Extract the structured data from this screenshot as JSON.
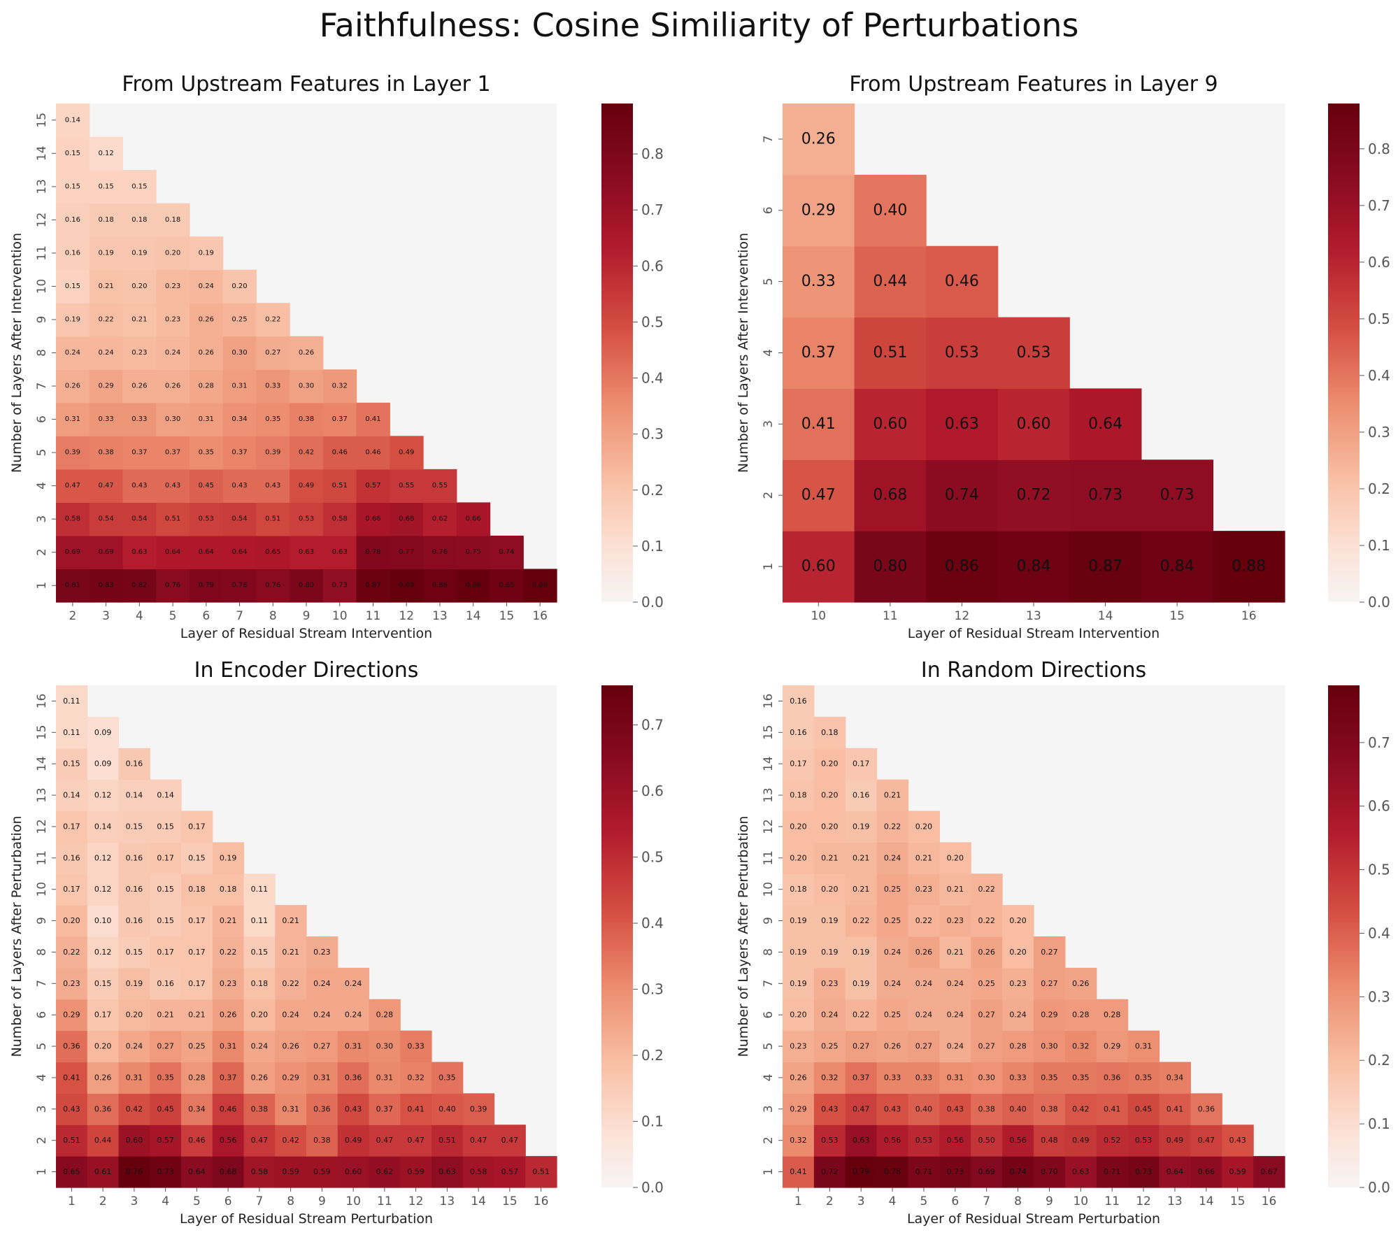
{
  "suptitle": "Faithfulness: Cosine Similiarity of Perturbations",
  "chart_data": [
    {
      "type": "heatmap",
      "title": "From Upstream Features in Layer 1",
      "xlabel": "Layer of Residual Stream Intervention",
      "ylabel": "Number of Layers After Intervention",
      "x_ticks": [
        2,
        3,
        4,
        5,
        6,
        7,
        8,
        9,
        10,
        11,
        12,
        13,
        14,
        15,
        16
      ],
      "y_ticks": [
        1,
        2,
        3,
        4,
        5,
        6,
        7,
        8,
        9,
        10,
        11,
        12,
        13,
        14,
        15
      ],
      "colorbar": {
        "min": 0.0,
        "max": 0.89,
        "ticks": [
          "0.0",
          "0.1",
          "0.2",
          "0.3",
          "0.4",
          "0.5",
          "0.6",
          "0.7",
          "0.8"
        ]
      },
      "rows": [
        {
          "y": 1,
          "values": [
            "0.81",
            "0.83",
            "0.82",
            "0.76",
            "0.79",
            "0.78",
            "0.76",
            "0.80",
            "0.73",
            "0.87",
            "0.89",
            "0.86",
            "0.89",
            "0.85",
            "0.89"
          ]
        },
        {
          "y": 2,
          "values": [
            "0.69",
            "0.69",
            "0.63",
            "0.64",
            "0.64",
            "0.64",
            "0.65",
            "0.63",
            "0.63",
            "0.78",
            "0.77",
            "0.76",
            "0.75",
            "0.74"
          ]
        },
        {
          "y": 3,
          "values": [
            "0.58",
            "0.54",
            "0.54",
            "0.51",
            "0.53",
            "0.54",
            "0.51",
            "0.53",
            "0.58",
            "0.66",
            "0.68",
            "0.62",
            "0.66"
          ]
        },
        {
          "y": 4,
          "values": [
            "0.47",
            "0.47",
            "0.43",
            "0.43",
            "0.45",
            "0.43",
            "0.43",
            "0.49",
            "0.51",
            "0.57",
            "0.55",
            "0.55"
          ]
        },
        {
          "y": 5,
          "values": [
            "0.39",
            "0.38",
            "0.37",
            "0.37",
            "0.35",
            "0.37",
            "0.39",
            "0.42",
            "0.46",
            "0.46",
            "0.49"
          ]
        },
        {
          "y": 6,
          "values": [
            "0.31",
            "0.33",
            "0.33",
            "0.30",
            "0.31",
            "0.34",
            "0.35",
            "0.38",
            "0.37",
            "0.41"
          ]
        },
        {
          "y": 7,
          "values": [
            "0.26",
            "0.29",
            "0.26",
            "0.26",
            "0.28",
            "0.31",
            "0.33",
            "0.30",
            "0.32"
          ]
        },
        {
          "y": 8,
          "values": [
            "0.24",
            "0.24",
            "0.23",
            "0.24",
            "0.26",
            "0.30",
            "0.27",
            "0.26"
          ]
        },
        {
          "y": 9,
          "values": [
            "0.19",
            "0.22",
            "0.21",
            "0.23",
            "0.26",
            "0.25",
            "0.22"
          ]
        },
        {
          "y": 10,
          "values": [
            "0.15",
            "0.21",
            "0.20",
            "0.23",
            "0.24",
            "0.20"
          ]
        },
        {
          "y": 11,
          "values": [
            "0.16",
            "0.19",
            "0.19",
            "0.20",
            "0.19"
          ]
        },
        {
          "y": 12,
          "values": [
            "0.16",
            "0.18",
            "0.18",
            "0.18"
          ]
        },
        {
          "y": 13,
          "values": [
            "0.15",
            "0.15",
            "0.15"
          ]
        },
        {
          "y": 14,
          "values": [
            "0.15",
            "0.12"
          ]
        },
        {
          "y": 15,
          "values": [
            "0.14"
          ]
        }
      ]
    },
    {
      "type": "heatmap",
      "title": "From Upstream Features in Layer 9",
      "xlabel": "Layer of Residual Stream Intervention",
      "ylabel": "Number of Layers After Intervention",
      "x_ticks": [
        10,
        11,
        12,
        13,
        14,
        15,
        16
      ],
      "y_ticks": [
        1,
        2,
        3,
        4,
        5,
        6,
        7
      ],
      "colorbar": {
        "min": 0.0,
        "max": 0.88,
        "ticks": [
          "0.0",
          "0.1",
          "0.2",
          "0.3",
          "0.4",
          "0.5",
          "0.6",
          "0.7",
          "0.8"
        ]
      },
      "rows": [
        {
          "y": 1,
          "values": [
            "0.60",
            "0.80",
            "0.86",
            "0.84",
            "0.87",
            "0.84",
            "0.88"
          ]
        },
        {
          "y": 2,
          "values": [
            "0.47",
            "0.68",
            "0.74",
            "0.72",
            "0.73",
            "0.73"
          ]
        },
        {
          "y": 3,
          "values": [
            "0.41",
            "0.60",
            "0.63",
            "0.60",
            "0.64"
          ]
        },
        {
          "y": 4,
          "values": [
            "0.37",
            "0.51",
            "0.53",
            "0.53"
          ]
        },
        {
          "y": 5,
          "values": [
            "0.33",
            "0.44",
            "0.46"
          ]
        },
        {
          "y": 6,
          "values": [
            "0.29",
            "0.40"
          ]
        },
        {
          "y": 7,
          "values": [
            "0.26"
          ]
        }
      ]
    },
    {
      "type": "heatmap",
      "title": "In Encoder Directions",
      "xlabel": "Layer of Residual Stream Perturbation",
      "ylabel": "Number of Layers After Perturbation",
      "x_ticks": [
        1,
        2,
        3,
        4,
        5,
        6,
        7,
        8,
        9,
        10,
        11,
        12,
        13,
        14,
        15,
        16
      ],
      "y_ticks": [
        1,
        2,
        3,
        4,
        5,
        6,
        7,
        8,
        9,
        10,
        11,
        12,
        13,
        14,
        15,
        16
      ],
      "colorbar": {
        "min": 0.0,
        "max": 0.76,
        "ticks": [
          "0.0",
          "0.1",
          "0.2",
          "0.3",
          "0.4",
          "0.5",
          "0.6",
          "0.7"
        ]
      },
      "rows": [
        {
          "y": 1,
          "values": [
            "0.65",
            "0.61",
            "0.76",
            "0.73",
            "0.64",
            "0.68",
            "0.58",
            "0.59",
            "0.59",
            "0.60",
            "0.62",
            "0.59",
            "0.63",
            "0.58",
            "0.57",
            "0.51"
          ]
        },
        {
          "y": 2,
          "values": [
            "0.51",
            "0.44",
            "0.60",
            "0.57",
            "0.46",
            "0.56",
            "0.47",
            "0.42",
            "0.38",
            "0.49",
            "0.47",
            "0.47",
            "0.51",
            "0.47",
            "0.47"
          ]
        },
        {
          "y": 3,
          "values": [
            "0.43",
            "0.36",
            "0.42",
            "0.45",
            "0.34",
            "0.46",
            "0.38",
            "0.31",
            "0.36",
            "0.43",
            "0.37",
            "0.41",
            "0.40",
            "0.39"
          ]
        },
        {
          "y": 4,
          "values": [
            "0.41",
            "0.26",
            "0.31",
            "0.35",
            "0.28",
            "0.37",
            "0.26",
            "0.29",
            "0.31",
            "0.36",
            "0.31",
            "0.32",
            "0.35"
          ]
        },
        {
          "y": 5,
          "values": [
            "0.36",
            "0.20",
            "0.24",
            "0.27",
            "0.25",
            "0.31",
            "0.24",
            "0.26",
            "0.27",
            "0.31",
            "0.30",
            "0.33"
          ]
        },
        {
          "y": 6,
          "values": [
            "0.29",
            "0.17",
            "0.20",
            "0.21",
            "0.21",
            "0.26",
            "0.20",
            "0.24",
            "0.24",
            "0.24",
            "0.28"
          ]
        },
        {
          "y": 7,
          "values": [
            "0.23",
            "0.15",
            "0.19",
            "0.16",
            "0.17",
            "0.23",
            "0.18",
            "0.22",
            "0.24",
            "0.24"
          ]
        },
        {
          "y": 8,
          "values": [
            "0.22",
            "0.12",
            "0.15",
            "0.17",
            "0.17",
            "0.22",
            "0.15",
            "0.21",
            "0.23"
          ]
        },
        {
          "y": 9,
          "values": [
            "0.20",
            "0.10",
            "0.16",
            "0.15",
            "0.17",
            "0.21",
            "0.11",
            "0.21"
          ]
        },
        {
          "y": 10,
          "values": [
            "0.17",
            "0.12",
            "0.16",
            "0.15",
            "0.18",
            "0.18",
            "0.11"
          ]
        },
        {
          "y": 11,
          "values": [
            "0.16",
            "0.12",
            "0.16",
            "0.17",
            "0.15",
            "0.19"
          ]
        },
        {
          "y": 12,
          "values": [
            "0.17",
            "0.14",
            "0.15",
            "0.15",
            "0.17"
          ]
        },
        {
          "y": 13,
          "values": [
            "0.14",
            "0.12",
            "0.14",
            "0.14"
          ]
        },
        {
          "y": 14,
          "values": [
            "0.15",
            "0.09",
            "0.16"
          ]
        },
        {
          "y": 15,
          "values": [
            "0.11",
            "0.09"
          ]
        },
        {
          "y": 16,
          "values": [
            "0.11"
          ]
        }
      ]
    },
    {
      "type": "heatmap",
      "title": "In Random Directions",
      "xlabel": "Layer of Residual Stream Perturbation",
      "ylabel": "Number of Layers After Perturbation",
      "x_ticks": [
        1,
        2,
        3,
        4,
        5,
        6,
        7,
        8,
        9,
        10,
        11,
        12,
        13,
        14,
        15,
        16
      ],
      "y_ticks": [
        1,
        2,
        3,
        4,
        5,
        6,
        7,
        8,
        9,
        10,
        11,
        12,
        13,
        14,
        15,
        16
      ],
      "colorbar": {
        "min": 0.0,
        "max": 0.79,
        "ticks": [
          "0.0",
          "0.1",
          "0.2",
          "0.3",
          "0.4",
          "0.5",
          "0.6",
          "0.7"
        ]
      },
      "rows": [
        {
          "y": 1,
          "values": [
            "0.41",
            "0.72",
            "0.79",
            "0.78",
            "0.71",
            "0.73",
            "0.69",
            "0.74",
            "0.70",
            "0.63",
            "0.71",
            "0.73",
            "0.64",
            "0.66",
            "0.59",
            "0.67"
          ]
        },
        {
          "y": 2,
          "values": [
            "0.32",
            "0.53",
            "0.63",
            "0.56",
            "0.53",
            "0.56",
            "0.50",
            "0.56",
            "0.48",
            "0.49",
            "0.52",
            "0.53",
            "0.49",
            "0.47",
            "0.43"
          ]
        },
        {
          "y": 3,
          "values": [
            "0.29",
            "0.43",
            "0.47",
            "0.43",
            "0.40",
            "0.43",
            "0.38",
            "0.40",
            "0.38",
            "0.42",
            "0.41",
            "0.45",
            "0.41",
            "0.36"
          ]
        },
        {
          "y": 4,
          "values": [
            "0.26",
            "0.32",
            "0.37",
            "0.33",
            "0.33",
            "0.31",
            "0.30",
            "0.33",
            "0.35",
            "0.35",
            "0.36",
            "0.35",
            "0.34"
          ]
        },
        {
          "y": 5,
          "values": [
            "0.23",
            "0.25",
            "0.27",
            "0.26",
            "0.27",
            "0.24",
            "0.27",
            "0.28",
            "0.30",
            "0.32",
            "0.29",
            "0.31"
          ]
        },
        {
          "y": 6,
          "values": [
            "0.20",
            "0.24",
            "0.22",
            "0.25",
            "0.24",
            "0.24",
            "0.27",
            "0.24",
            "0.29",
            "0.28",
            "0.28"
          ]
        },
        {
          "y": 7,
          "values": [
            "0.19",
            "0.23",
            "0.19",
            "0.24",
            "0.24",
            "0.24",
            "0.25",
            "0.23",
            "0.27",
            "0.26"
          ]
        },
        {
          "y": 8,
          "values": [
            "0.19",
            "0.19",
            "0.19",
            "0.24",
            "0.26",
            "0.21",
            "0.26",
            "0.20",
            "0.27"
          ]
        },
        {
          "y": 9,
          "values": [
            "0.19",
            "0.19",
            "0.22",
            "0.25",
            "0.22",
            "0.23",
            "0.22",
            "0.20"
          ]
        },
        {
          "y": 10,
          "values": [
            "0.18",
            "0.20",
            "0.21",
            "0.25",
            "0.23",
            "0.21",
            "0.22"
          ]
        },
        {
          "y": 11,
          "values": [
            "0.20",
            "0.21",
            "0.21",
            "0.24",
            "0.21",
            "0.20"
          ]
        },
        {
          "y": 12,
          "values": [
            "0.20",
            "0.20",
            "0.19",
            "0.22",
            "0.20"
          ]
        },
        {
          "y": 13,
          "values": [
            "0.18",
            "0.20",
            "0.16",
            "0.21"
          ]
        },
        {
          "y": 14,
          "values": [
            "0.17",
            "0.20",
            "0.17"
          ]
        },
        {
          "y": 15,
          "values": [
            "0.16",
            "0.18"
          ]
        },
        {
          "y": 16,
          "values": [
            "0.16"
          ]
        }
      ]
    }
  ]
}
